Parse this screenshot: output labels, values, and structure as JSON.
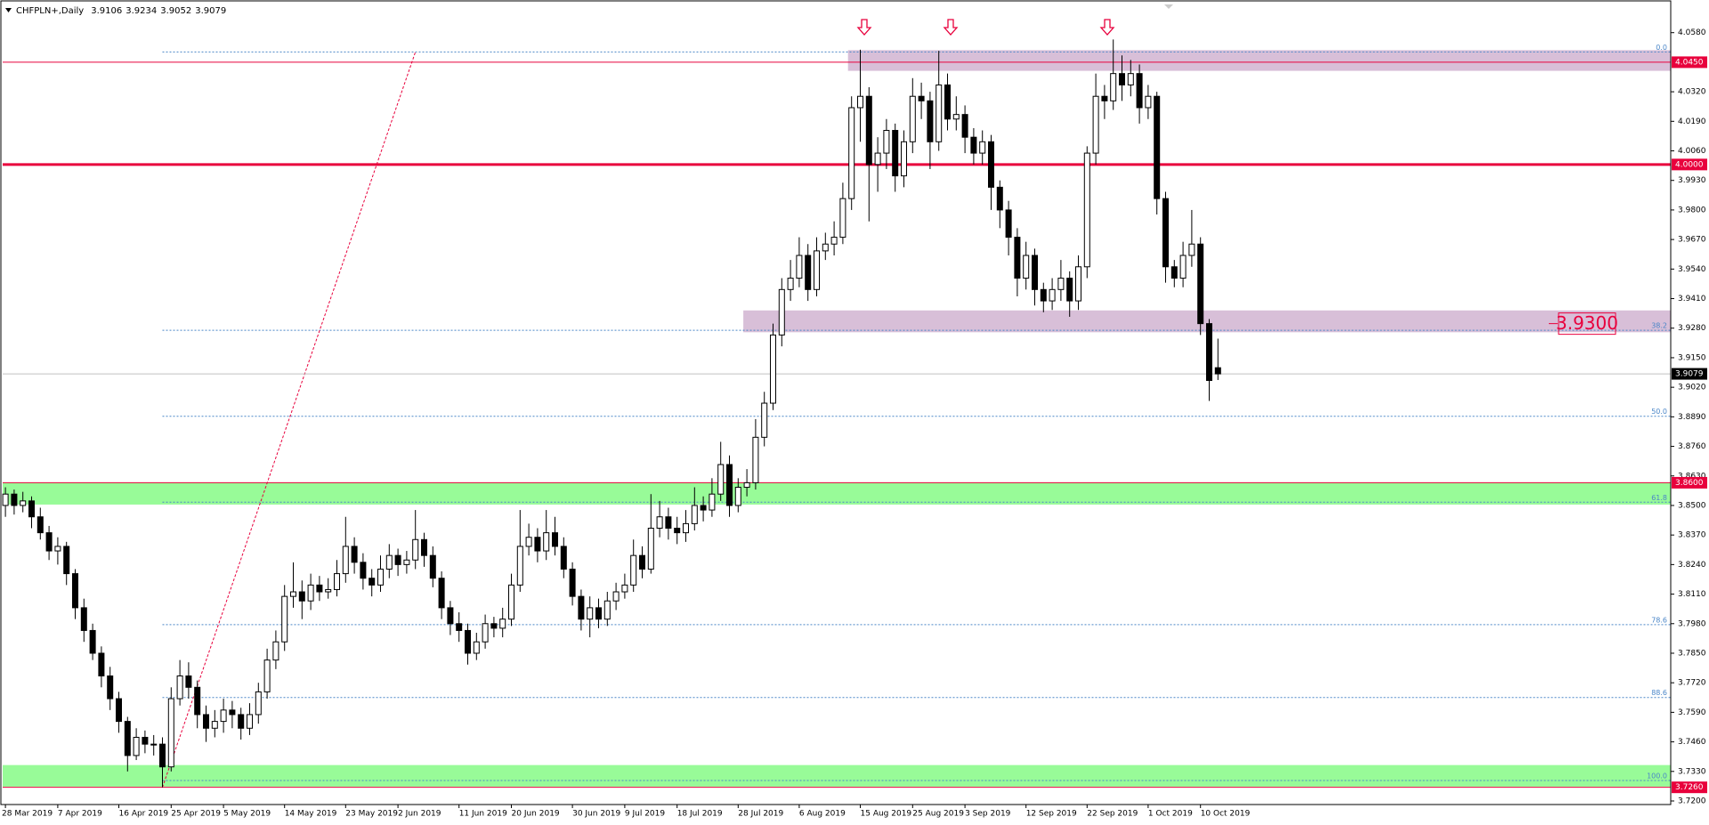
{
  "chart_data": {
    "type": "candlestick",
    "title": "CHFPLN+,Daily",
    "categories": [
      "28 Mar 2019",
      null,
      null,
      null,
      null,
      null,
      "7 Apr 2019",
      null,
      null,
      null,
      null,
      null,
      null,
      "16 Apr 2019",
      null,
      null,
      null,
      null,
      null,
      "25 Apr 2019",
      null,
      null,
      null,
      null,
      null,
      "5 May 2019",
      null,
      null,
      null,
      null,
      null,
      null,
      "14 May 2019",
      null,
      null,
      null,
      null,
      null,
      null,
      "23 May 2019",
      null,
      null,
      null,
      null,
      null,
      "2 Jun 2019",
      null,
      null,
      null,
      null,
      null,
      null,
      "11 Jun 2019",
      null,
      null,
      null,
      null,
      null,
      "20 Jun 2019",
      null,
      null,
      null,
      null,
      null,
      null,
      "30 Jun 2019",
      null,
      null,
      null,
      null,
      null,
      "9 Jul 2019",
      null,
      null,
      null,
      null,
      null,
      "18 Jul 2019",
      null,
      null,
      null,
      null,
      null,
      null,
      "28 Jul 2019",
      null,
      null,
      null,
      null,
      null,
      null,
      "6 Aug 2019",
      null,
      null,
      null,
      null,
      null,
      null,
      "15 Aug 2019",
      null,
      null,
      null,
      null,
      null,
      "25 Aug 2019",
      null,
      null,
      null,
      null,
      null,
      "3 Sep 2019",
      null,
      null,
      null,
      null,
      null,
      null,
      "12 Sep 2019",
      null,
      null,
      null,
      null,
      null,
      null,
      "22 Sep 2019",
      null,
      null,
      null,
      null,
      null,
      null,
      "1 Oct 2019",
      null,
      null,
      null,
      null,
      null,
      "10 Oct 2019",
      null,
      null
    ],
    "ohlc": [
      [
        3.85,
        3.858,
        3.845,
        3.855
      ],
      [
        3.855,
        3.857,
        3.846,
        3.85
      ],
      [
        3.85,
        3.856,
        3.847,
        3.852
      ],
      [
        3.852,
        3.854,
        3.84,
        3.845
      ],
      [
        3.845,
        3.849,
        3.835,
        3.838
      ],
      [
        3.838,
        3.841,
        3.826,
        3.83
      ],
      [
        3.83,
        3.836,
        3.824,
        3.832
      ],
      [
        3.832,
        3.834,
        3.815,
        3.82
      ],
      [
        3.82,
        3.822,
        3.8,
        3.805
      ],
      [
        3.805,
        3.809,
        3.79,
        3.795
      ],
      [
        3.795,
        3.798,
        3.782,
        3.785
      ],
      [
        3.785,
        3.788,
        3.77,
        3.775
      ],
      [
        3.775,
        3.779,
        3.76,
        3.765
      ],
      [
        3.765,
        3.768,
        3.75,
        3.755
      ],
      [
        3.755,
        3.757,
        3.733,
        3.74
      ],
      [
        3.74,
        3.752,
        3.738,
        3.748
      ],
      [
        3.748,
        3.751,
        3.741,
        3.745
      ],
      [
        3.745,
        3.749,
        3.74,
        3.745
      ],
      [
        3.745,
        3.748,
        3.726,
        3.735
      ],
      [
        3.735,
        3.77,
        3.733,
        3.765
      ],
      [
        3.765,
        3.782,
        3.762,
        3.775
      ],
      [
        3.775,
        3.781,
        3.765,
        3.77
      ],
      [
        3.77,
        3.773,
        3.752,
        3.758
      ],
      [
        3.758,
        3.762,
        3.746,
        3.752
      ],
      [
        3.752,
        3.76,
        3.748,
        3.755
      ],
      [
        3.755,
        3.765,
        3.75,
        3.76
      ],
      [
        3.76,
        3.764,
        3.752,
        3.758
      ],
      [
        3.758,
        3.761,
        3.747,
        3.752
      ],
      [
        3.752,
        3.763,
        3.749,
        3.758
      ],
      [
        3.758,
        3.772,
        3.754,
        3.768
      ],
      [
        3.768,
        3.787,
        3.765,
        3.782
      ],
      [
        3.782,
        3.795,
        3.778,
        3.79
      ],
      [
        3.79,
        3.815,
        3.786,
        3.81
      ],
      [
        3.81,
        3.825,
        3.805,
        3.812
      ],
      [
        3.812,
        3.817,
        3.8,
        3.808
      ],
      [
        3.808,
        3.82,
        3.804,
        3.815
      ],
      [
        3.815,
        3.819,
        3.808,
        3.812
      ],
      [
        3.812,
        3.818,
        3.809,
        3.813
      ],
      [
        3.813,
        3.826,
        3.81,
        3.82
      ],
      [
        3.82,
        3.845,
        3.816,
        3.832
      ],
      [
        3.832,
        3.836,
        3.82,
        3.825
      ],
      [
        3.825,
        3.829,
        3.813,
        3.818
      ],
      [
        3.818,
        3.822,
        3.81,
        3.815
      ],
      [
        3.815,
        3.828,
        3.812,
        3.822
      ],
      [
        3.822,
        3.833,
        3.818,
        3.828
      ],
      [
        3.828,
        3.831,
        3.819,
        3.824
      ],
      [
        3.824,
        3.83,
        3.82,
        3.826
      ],
      [
        3.826,
        3.848,
        3.822,
        3.835
      ],
      [
        3.835,
        3.838,
        3.823,
        3.828
      ],
      [
        3.828,
        3.832,
        3.814,
        3.818
      ],
      [
        3.818,
        3.821,
        3.8,
        3.805
      ],
      [
        3.805,
        3.808,
        3.793,
        3.798
      ],
      [
        3.798,
        3.803,
        3.79,
        3.795
      ],
      [
        3.795,
        3.798,
        3.78,
        3.785
      ],
      [
        3.785,
        3.794,
        3.782,
        3.79
      ],
      [
        3.79,
        3.802,
        3.787,
        3.798
      ],
      [
        3.798,
        3.801,
        3.792,
        3.796
      ],
      [
        3.796,
        3.805,
        3.792,
        3.8
      ],
      [
        3.8,
        3.82,
        3.797,
        3.815
      ],
      [
        3.815,
        3.848,
        3.812,
        3.832
      ],
      [
        3.832,
        3.842,
        3.828,
        3.836
      ],
      [
        3.836,
        3.84,
        3.825,
        3.83
      ],
      [
        3.83,
        3.848,
        3.826,
        3.838
      ],
      [
        3.838,
        3.845,
        3.828,
        3.832
      ],
      [
        3.832,
        3.836,
        3.818,
        3.822
      ],
      [
        3.822,
        3.825,
        3.806,
        3.81
      ],
      [
        3.81,
        3.813,
        3.795,
        3.8
      ],
      [
        3.8,
        3.81,
        3.792,
        3.805
      ],
      [
        3.805,
        3.809,
        3.796,
        3.8
      ],
      [
        3.8,
        3.812,
        3.797,
        3.808
      ],
      [
        3.808,
        3.816,
        3.804,
        3.812
      ],
      [
        3.812,
        3.82,
        3.809,
        3.815
      ],
      [
        3.815,
        3.835,
        3.812,
        3.828
      ],
      [
        3.828,
        3.832,
        3.818,
        3.822
      ],
      [
        3.822,
        3.855,
        3.82,
        3.84
      ],
      [
        3.84,
        3.852,
        3.836,
        3.845
      ],
      [
        3.845,
        3.849,
        3.835,
        3.84
      ],
      [
        3.84,
        3.845,
        3.833,
        3.838
      ],
      [
        3.838,
        3.848,
        3.834,
        3.842
      ],
      [
        3.842,
        3.858,
        3.839,
        3.85
      ],
      [
        3.85,
        3.854,
        3.843,
        3.848
      ],
      [
        3.848,
        3.862,
        3.845,
        3.855
      ],
      [
        3.855,
        3.878,
        3.852,
        3.868
      ],
      [
        3.868,
        3.872,
        3.845,
        3.85
      ],
      [
        3.85,
        3.862,
        3.847,
        3.858
      ],
      [
        3.858,
        3.866,
        3.854,
        3.86
      ],
      [
        3.86,
        3.888,
        3.857,
        3.88
      ],
      [
        3.88,
        3.9,
        3.876,
        3.895
      ],
      [
        3.895,
        3.93,
        3.892,
        3.925
      ],
      [
        3.925,
        3.95,
        3.92,
        3.945
      ],
      [
        3.945,
        3.958,
        3.94,
        3.95
      ],
      [
        3.95,
        3.968,
        3.946,
        3.96
      ],
      [
        3.96,
        3.965,
        3.94,
        3.945
      ],
      [
        3.945,
        3.968,
        3.942,
        3.962
      ],
      [
        3.962,
        3.97,
        3.958,
        3.965
      ],
      [
        3.965,
        3.975,
        3.96,
        3.968
      ],
      [
        3.968,
        3.992,
        3.965,
        3.985
      ],
      [
        3.985,
        4.03,
        3.98,
        4.025
      ],
      [
        4.025,
        4.0505,
        4.01,
        4.03
      ],
      [
        4.03,
        4.034,
        3.975,
        4.0
      ],
      [
        4.0,
        4.012,
        3.988,
        4.005
      ],
      [
        4.005,
        4.02,
        3.998,
        4.015
      ],
      [
        4.015,
        4.018,
        3.988,
        3.995
      ],
      [
        3.995,
        4.015,
        3.99,
        4.01
      ],
      [
        4.01,
        4.038,
        4.005,
        4.03
      ],
      [
        4.03,
        4.036,
        4.02,
        4.028
      ],
      [
        4.028,
        4.032,
        3.998,
        4.01
      ],
      [
        4.01,
        4.05,
        4.006,
        4.035
      ],
      [
        4.035,
        4.04,
        4.015,
        4.02
      ],
      [
        4.02,
        4.03,
        4.015,
        4.022
      ],
      [
        4.022,
        4.026,
        4.005,
        4.012
      ],
      [
        4.012,
        4.016,
        4.0,
        4.005
      ],
      [
        4.005,
        4.015,
        4.0,
        4.01
      ],
      [
        4.01,
        4.013,
        3.98,
        3.99
      ],
      [
        3.99,
        3.993,
        3.972,
        3.98
      ],
      [
        3.98,
        3.984,
        3.96,
        3.968
      ],
      [
        3.968,
        3.972,
        3.942,
        3.95
      ],
      [
        3.95,
        3.966,
        3.945,
        3.96
      ],
      [
        3.96,
        3.963,
        3.938,
        3.945
      ],
      [
        3.945,
        3.948,
        3.935,
        3.94
      ],
      [
        3.94,
        3.95,
        3.936,
        3.945
      ],
      [
        3.945,
        3.958,
        3.94,
        3.95
      ],
      [
        3.95,
        3.953,
        3.933,
        3.94
      ],
      [
        3.94,
        3.96,
        3.936,
        3.955
      ],
      [
        3.955,
        4.008,
        3.95,
        4.005
      ],
      [
        4.005,
        4.04,
        4.0,
        4.03
      ],
      [
        4.03,
        4.035,
        4.02,
        4.028
      ],
      [
        4.028,
        4.055,
        4.024,
        4.04
      ],
      [
        4.04,
        4.048,
        4.028,
        4.035
      ],
      [
        4.035,
        4.046,
        4.03,
        4.04
      ],
      [
        4.04,
        4.044,
        4.018,
        4.025
      ],
      [
        4.025,
        4.035,
        4.02,
        4.03
      ],
      [
        4.03,
        4.032,
        3.978,
        3.985
      ],
      [
        3.985,
        3.988,
        3.948,
        3.955
      ],
      [
        3.955,
        3.958,
        3.946,
        3.95
      ],
      [
        3.95,
        3.966,
        3.946,
        3.96
      ],
      [
        3.96,
        3.98,
        3.955,
        3.965
      ],
      [
        3.965,
        3.968,
        3.925,
        3.93
      ],
      [
        3.93,
        3.932,
        3.896,
        3.905
      ],
      [
        3.9106,
        3.9234,
        3.9052,
        3.9079
      ]
    ],
    "up_color": "#ffffff",
    "down_color": "#000000",
    "ylim": [
      3.72,
      4.058
    ],
    "yticks": [
      {
        "value": 4.058,
        "label": "4.0580"
      },
      {
        "value": 4.032,
        "label": "4.0320"
      },
      {
        "value": 4.019,
        "label": "4.0190"
      },
      {
        "value": 4.006,
        "label": "4.0060"
      },
      {
        "value": 3.993,
        "label": "3.9930"
      },
      {
        "value": 3.98,
        "label": "3.9800"
      },
      {
        "value": 3.967,
        "label": "3.9670"
      },
      {
        "value": 3.954,
        "label": "3.9540"
      },
      {
        "value": 3.941,
        "label": "3.9410"
      },
      {
        "value": 3.928,
        "label": "3.9280"
      },
      {
        "value": 3.915,
        "label": "3.9150"
      },
      {
        "value": 3.902,
        "label": "3.9020"
      },
      {
        "value": 3.889,
        "label": "3.8890"
      },
      {
        "value": 3.876,
        "label": "3.8760"
      },
      {
        "value": 3.863,
        "label": "3.8630"
      },
      {
        "value": 3.85,
        "label": "3.8500"
      },
      {
        "value": 3.837,
        "label": "3.8370"
      },
      {
        "value": 3.824,
        "label": "3.8240"
      },
      {
        "value": 3.811,
        "label": "3.8110"
      },
      {
        "value": 3.798,
        "label": "3.7980"
      },
      {
        "value": 3.785,
        "label": "3.7850"
      },
      {
        "value": 3.772,
        "label": "3.7720"
      },
      {
        "value": 3.759,
        "label": "3.7590"
      },
      {
        "value": 3.746,
        "label": "3.7460"
      },
      {
        "value": 3.733,
        "label": "3.7330"
      },
      {
        "value": 3.72,
        "label": "3.7200"
      }
    ],
    "levels": [
      {
        "value": 4.045,
        "label": "4.0450",
        "color": "#e8003c",
        "width": 1
      },
      {
        "value": 4,
        "label": "4.0000",
        "color": "#e8003c",
        "width": 3
      },
      {
        "value": 3.86,
        "label": "3.8600",
        "color": "#e8003c",
        "width": 1
      },
      {
        "value": 3.726,
        "label": "3.7260",
        "color": "#e8003c",
        "width": 1
      }
    ],
    "zones": [
      {
        "top": 4.0503,
        "bottom": 4.0412,
        "color": "#d8bfd8"
      },
      {
        "top": 3.9358,
        "bottom": 3.9262,
        "color": "#d8bfd8"
      },
      {
        "top": 3.86,
        "bottom": 3.8504,
        "color": "#98fb98"
      },
      {
        "top": 3.7358,
        "bottom": 3.7263,
        "color": "#98fb98"
      }
    ],
    "fib": {
      "high": 4.0495,
      "low": 3.729,
      "color": "#4a86c8",
      "levels": [
        {
          "value": 0,
          "label": "0.0"
        },
        38.2,
        {
          "value": 50,
          "label": "50.0"
        },
        61.8,
        78.6,
        88.6,
        {
          "value": 100,
          "label": "100.0"
        }
      ]
    },
    "annotation": {
      "value": 3.93,
      "label": "3.9300",
      "color": "#e8003c"
    }
  }
}
